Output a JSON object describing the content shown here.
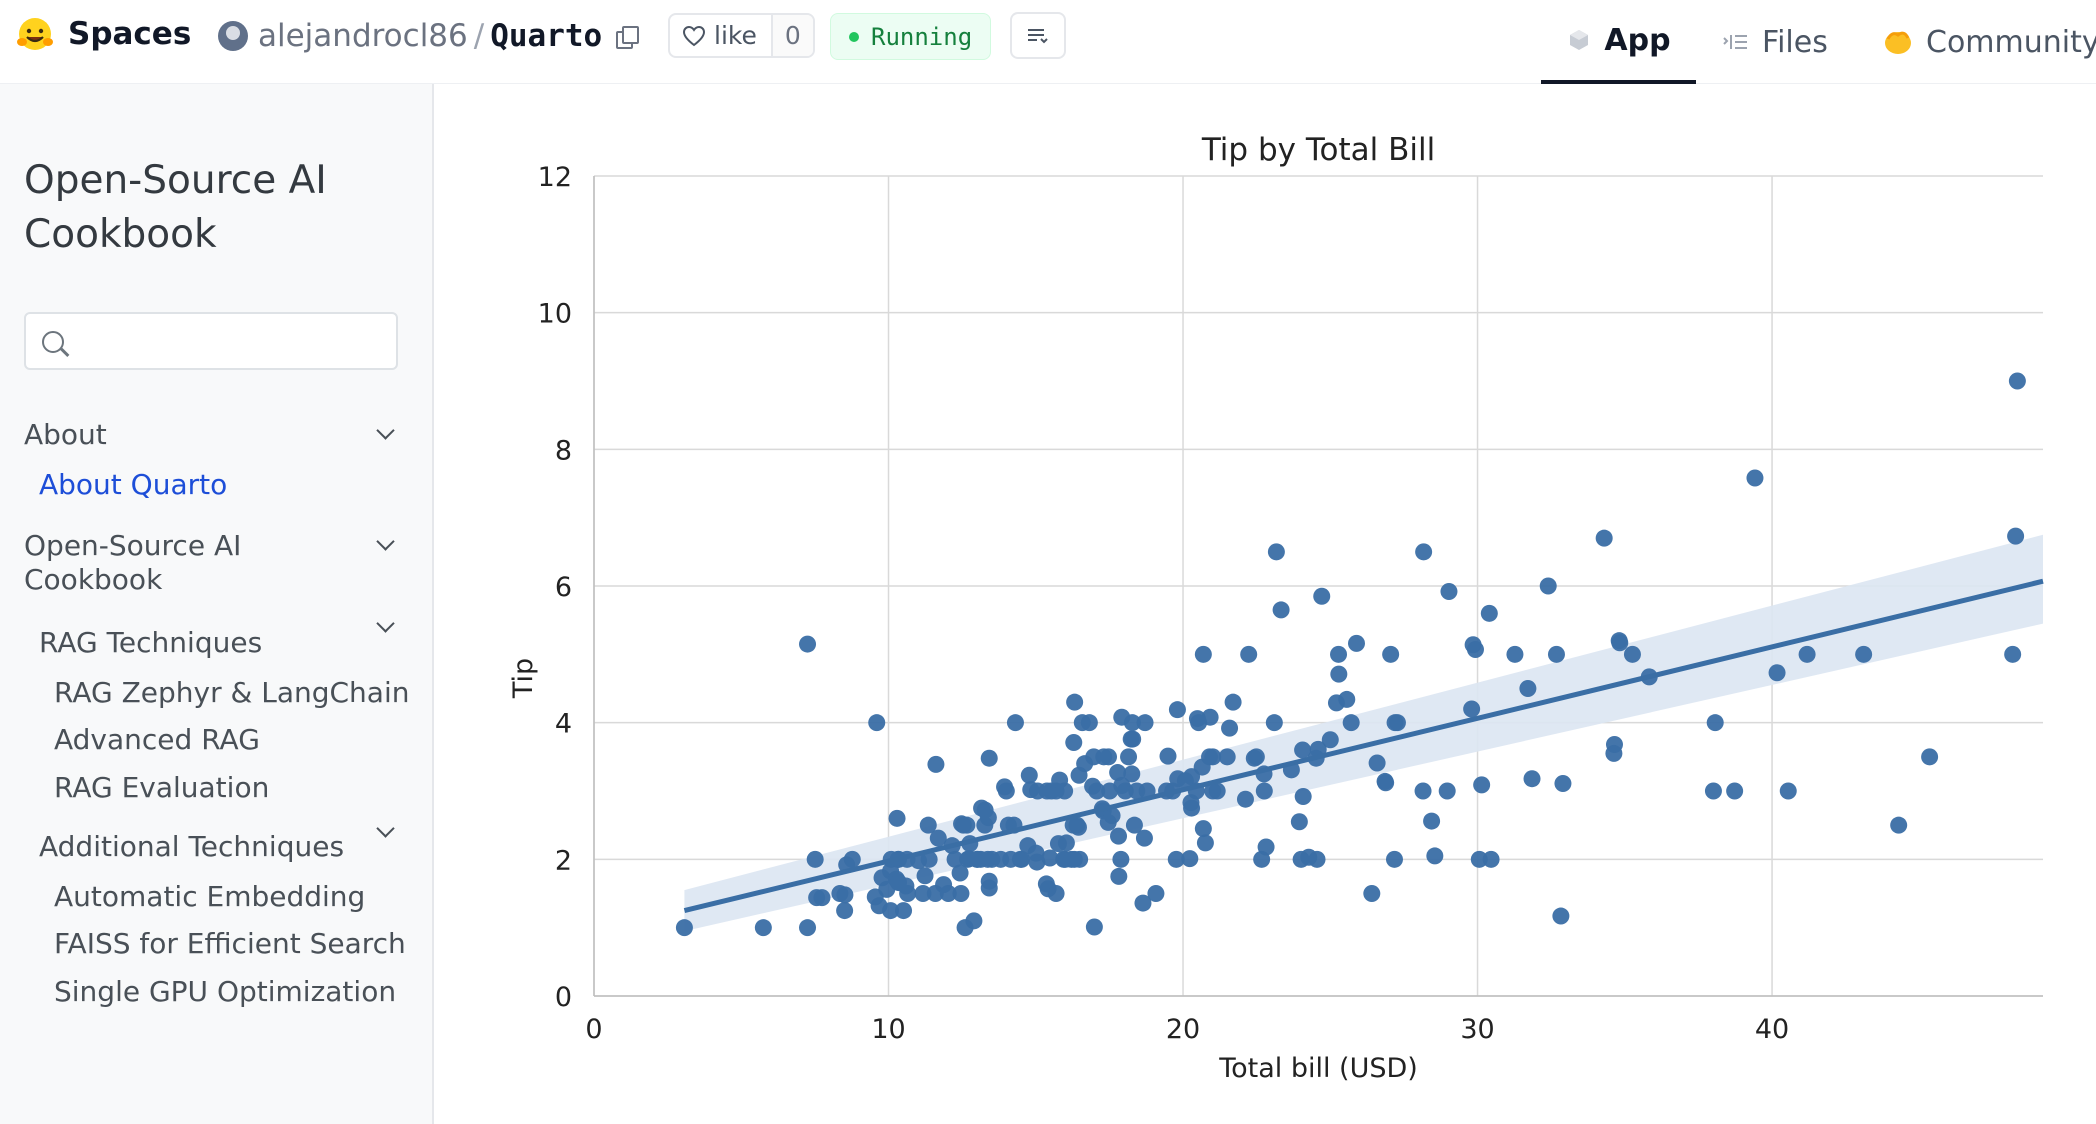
{
  "header": {
    "brand": "Spaces",
    "owner": "alejandrocl86",
    "separator": "/",
    "repo": "Quarto",
    "like_label": "like",
    "like_count": "0",
    "status": "Running",
    "nav": {
      "app": "App",
      "files": "Files",
      "community": "Community"
    }
  },
  "sidebar": {
    "title": "Open-Source AI Cookbook",
    "search_placeholder": "",
    "items": [
      {
        "label": "About"
      },
      {
        "label": "About Quarto"
      },
      {
        "label": "Open-Source AI Cookbook"
      },
      {
        "label": "RAG Techniques"
      },
      {
        "label": "RAG Zephyr & LangChain"
      },
      {
        "label": "Advanced RAG"
      },
      {
        "label": "RAG Evaluation"
      },
      {
        "label": "Additional Techniques"
      },
      {
        "label": "Automatic Embedding"
      },
      {
        "label": "FAISS for Efficient Search"
      },
      {
        "label": "Single GPU Optimization"
      }
    ]
  },
  "colors": {
    "accent": "#3a6ea5",
    "band": "#dbe6f2",
    "link": "#1d4ed8",
    "status_green": "#15803d"
  },
  "chart_data": {
    "type": "scatter",
    "title": "Tip by Total Bill",
    "xlabel": "Total bill (USD)",
    "ylabel": "Tip",
    "xlim": [
      0,
      49.2
    ],
    "ylim": [
      0,
      12
    ],
    "xticks": [
      "0",
      "10",
      "20",
      "30",
      "40"
    ],
    "yticks": [
      "0",
      "2",
      "4",
      "6",
      "8",
      "10",
      "12"
    ],
    "grid": true,
    "regression": {
      "x0": 3.07,
      "y0": 1.25,
      "x1": 49.2,
      "y1": 6.07,
      "band_low_start": 0.95,
      "band_high_start": 1.55,
      "band_low_end": 5.45,
      "band_high_end": 6.75
    },
    "points": [
      [
        3.07,
        1.0
      ],
      [
        5.75,
        1.0
      ],
      [
        7.25,
        1.0
      ],
      [
        7.25,
        5.15
      ],
      [
        7.51,
        2.0
      ],
      [
        7.56,
        1.44
      ],
      [
        7.74,
        1.44
      ],
      [
        8.35,
        1.5
      ],
      [
        8.51,
        1.25
      ],
      [
        8.52,
        1.48
      ],
      [
        8.58,
        1.92
      ],
      [
        8.77,
        2.0
      ],
      [
        9.55,
        1.45
      ],
      [
        9.6,
        4.0
      ],
      [
        9.68,
        1.32
      ],
      [
        9.78,
        1.73
      ],
      [
        9.94,
        1.56
      ],
      [
        10.07,
        1.83
      ],
      [
        10.07,
        1.25
      ],
      [
        10.09,
        2.0
      ],
      [
        10.27,
        1.71
      ],
      [
        10.29,
        2.6
      ],
      [
        10.33,
        2.0
      ],
      [
        10.33,
        1.67
      ],
      [
        10.34,
        1.66
      ],
      [
        10.34,
        2.0
      ],
      [
        10.51,
        1.25
      ],
      [
        10.59,
        1.61
      ],
      [
        10.63,
        2.0
      ],
      [
        10.65,
        1.5
      ],
      [
        11.02,
        1.98
      ],
      [
        11.17,
        1.5
      ],
      [
        11.24,
        1.76
      ],
      [
        11.35,
        2.5
      ],
      [
        11.38,
        2.0
      ],
      [
        11.59,
        1.5
      ],
      [
        11.61,
        3.39
      ],
      [
        11.69,
        2.31
      ],
      [
        11.87,
        1.63
      ],
      [
        12.03,
        1.5
      ],
      [
        12.16,
        2.2
      ],
      [
        12.26,
        2.0
      ],
      [
        12.43,
        1.8
      ],
      [
        12.46,
        1.5
      ],
      [
        12.48,
        2.52
      ],
      [
        12.54,
        2.5
      ],
      [
        12.6,
        1.0
      ],
      [
        12.66,
        2.5
      ],
      [
        12.69,
        2.0
      ],
      [
        12.74,
        2.01
      ],
      [
        12.76,
        2.23
      ],
      [
        12.9,
        1.1
      ],
      [
        13.0,
        2.0
      ],
      [
        13.03,
        2.0
      ],
      [
        13.13,
        2.0
      ],
      [
        13.16,
        2.75
      ],
      [
        13.27,
        2.5
      ],
      [
        13.28,
        2.72
      ],
      [
        13.37,
        2.0
      ],
      [
        13.39,
        2.61
      ],
      [
        13.42,
        1.58
      ],
      [
        13.42,
        3.48
      ],
      [
        13.42,
        1.68
      ],
      [
        13.51,
        2.0
      ],
      [
        13.81,
        2.0
      ],
      [
        13.94,
        3.06
      ],
      [
        14.0,
        3.0
      ],
      [
        14.07,
        2.5
      ],
      [
        14.15,
        2.0
      ],
      [
        14.26,
        2.5
      ],
      [
        14.31,
        4.0
      ],
      [
        14.48,
        2.0
      ],
      [
        14.52,
        2.0
      ],
      [
        14.73,
        2.2
      ],
      [
        14.78,
        3.23
      ],
      [
        14.83,
        3.02
      ],
      [
        15.01,
        2.09
      ],
      [
        15.04,
        1.96
      ],
      [
        15.06,
        3.0
      ],
      [
        15.36,
        1.64
      ],
      [
        15.38,
        3.0
      ],
      [
        15.42,
        1.57
      ],
      [
        15.48,
        2.02
      ],
      [
        15.53,
        3.0
      ],
      [
        15.69,
        3.0
      ],
      [
        15.69,
        1.5
      ],
      [
        15.77,
        2.23
      ],
      [
        15.81,
        3.16
      ],
      [
        15.95,
        2.0
      ],
      [
        15.98,
        3.0
      ],
      [
        16.0,
        2.0
      ],
      [
        16.04,
        2.24
      ],
      [
        16.21,
        2.0
      ],
      [
        16.27,
        2.5
      ],
      [
        16.29,
        3.71
      ],
      [
        16.31,
        2.0
      ],
      [
        16.32,
        4.3
      ],
      [
        16.4,
        2.5
      ],
      [
        16.45,
        2.47
      ],
      [
        16.47,
        3.23
      ],
      [
        16.49,
        2.0
      ],
      [
        16.58,
        4.0
      ],
      [
        16.66,
        3.4
      ],
      [
        16.82,
        4.0
      ],
      [
        16.93,
        3.07
      ],
      [
        16.97,
        3.5
      ],
      [
        16.99,
        1.01
      ],
      [
        17.07,
        3.0
      ],
      [
        17.26,
        2.74
      ],
      [
        17.29,
        2.71
      ],
      [
        17.31,
        3.5
      ],
      [
        17.46,
        2.54
      ],
      [
        17.47,
        3.5
      ],
      [
        17.51,
        3.0
      ],
      [
        17.59,
        2.64
      ],
      [
        17.78,
        3.27
      ],
      [
        17.81,
        2.34
      ],
      [
        17.82,
        1.75
      ],
      [
        17.89,
        2.0
      ],
      [
        17.92,
        4.08
      ],
      [
        17.92,
        3.08
      ],
      [
        18.04,
        3.0
      ],
      [
        18.15,
        3.5
      ],
      [
        18.24,
        3.76
      ],
      [
        18.26,
        3.25
      ],
      [
        18.28,
        4.0
      ],
      [
        18.29,
        3.76
      ],
      [
        18.35,
        2.5
      ],
      [
        18.43,
        3.0
      ],
      [
        18.64,
        1.36
      ],
      [
        18.69,
        2.31
      ],
      [
        18.71,
        4.0
      ],
      [
        18.78,
        3.0
      ],
      [
        19.08,
        1.5
      ],
      [
        19.44,
        3.0
      ],
      [
        19.49,
        3.51
      ],
      [
        19.65,
        3.0
      ],
      [
        19.77,
        2.0
      ],
      [
        19.81,
        4.19
      ],
      [
        19.82,
        3.18
      ],
      [
        20.08,
        3.15
      ],
      [
        20.23,
        2.01
      ],
      [
        20.27,
        2.83
      ],
      [
        20.29,
        2.75
      ],
      [
        20.29,
        3.21
      ],
      [
        20.45,
        3.0
      ],
      [
        20.49,
        4.06
      ],
      [
        20.53,
        4.0
      ],
      [
        20.65,
        3.35
      ],
      [
        20.69,
        2.45
      ],
      [
        20.69,
        5.0
      ],
      [
        20.76,
        2.24
      ],
      [
        20.9,
        3.5
      ],
      [
        20.92,
        4.08
      ],
      [
        21.01,
        3.5
      ],
      [
        21.01,
        3.0
      ],
      [
        21.16,
        3.0
      ],
      [
        21.5,
        3.5
      ],
      [
        21.58,
        3.92
      ],
      [
        21.7,
        4.3
      ],
      [
        22.12,
        2.88
      ],
      [
        22.23,
        5.0
      ],
      [
        22.42,
        3.48
      ],
      [
        22.49,
        3.5
      ],
      [
        22.67,
        2.0
      ],
      [
        22.75,
        3.25
      ],
      [
        22.76,
        3.0
      ],
      [
        22.82,
        2.18
      ],
      [
        23.1,
        4.0
      ],
      [
        23.17,
        6.5
      ],
      [
        23.33,
        5.65
      ],
      [
        23.68,
        3.31
      ],
      [
        23.95,
        2.55
      ],
      [
        24.01,
        2.0
      ],
      [
        24.06,
        3.6
      ],
      [
        24.08,
        2.92
      ],
      [
        24.27,
        2.03
      ],
      [
        24.52,
        3.48
      ],
      [
        24.55,
        2.0
      ],
      [
        24.59,
        3.61
      ],
      [
        24.71,
        5.85
      ],
      [
        25.0,
        3.75
      ],
      [
        25.21,
        4.29
      ],
      [
        25.28,
        5.0
      ],
      [
        25.29,
        4.71
      ],
      [
        25.56,
        4.34
      ],
      [
        25.71,
        4.0
      ],
      [
        25.89,
        5.16
      ],
      [
        26.41,
        1.5
      ],
      [
        26.59,
        3.41
      ],
      [
        26.86,
        3.14
      ],
      [
        26.88,
        3.12
      ],
      [
        27.05,
        5.0
      ],
      [
        27.18,
        2.0
      ],
      [
        27.2,
        4.0
      ],
      [
        27.28,
        4.0
      ],
      [
        28.15,
        3.0
      ],
      [
        28.17,
        6.5
      ],
      [
        28.44,
        2.56
      ],
      [
        28.55,
        2.05
      ],
      [
        28.97,
        3.0
      ],
      [
        29.03,
        5.92
      ],
      [
        29.8,
        4.2
      ],
      [
        29.85,
        5.14
      ],
      [
        29.93,
        5.07
      ],
      [
        30.06,
        2.0
      ],
      [
        30.14,
        3.09
      ],
      [
        30.4,
        5.6
      ],
      [
        30.46,
        2.0
      ],
      [
        31.27,
        5.0
      ],
      [
        31.71,
        4.5
      ],
      [
        31.85,
        3.18
      ],
      [
        32.4,
        6.0
      ],
      [
        32.68,
        5.0
      ],
      [
        32.83,
        1.17
      ],
      [
        32.9,
        3.11
      ],
      [
        34.3,
        6.7
      ],
      [
        34.63,
        3.55
      ],
      [
        34.65,
        3.68
      ],
      [
        34.81,
        5.2
      ],
      [
        34.83,
        5.17
      ],
      [
        35.26,
        5.0
      ],
      [
        35.83,
        4.67
      ],
      [
        38.07,
        4.0
      ],
      [
        38.01,
        3.0
      ],
      [
        38.73,
        3.0
      ],
      [
        39.42,
        7.58
      ],
      [
        40.17,
        4.73
      ],
      [
        40.55,
        3.0
      ],
      [
        41.19,
        5.0
      ],
      [
        43.11,
        5.0
      ],
      [
        44.3,
        2.5
      ],
      [
        45.35,
        3.5
      ],
      [
        48.17,
        5.0
      ],
      [
        48.27,
        6.73
      ],
      [
        48.33,
        9.0
      ]
    ]
  }
}
